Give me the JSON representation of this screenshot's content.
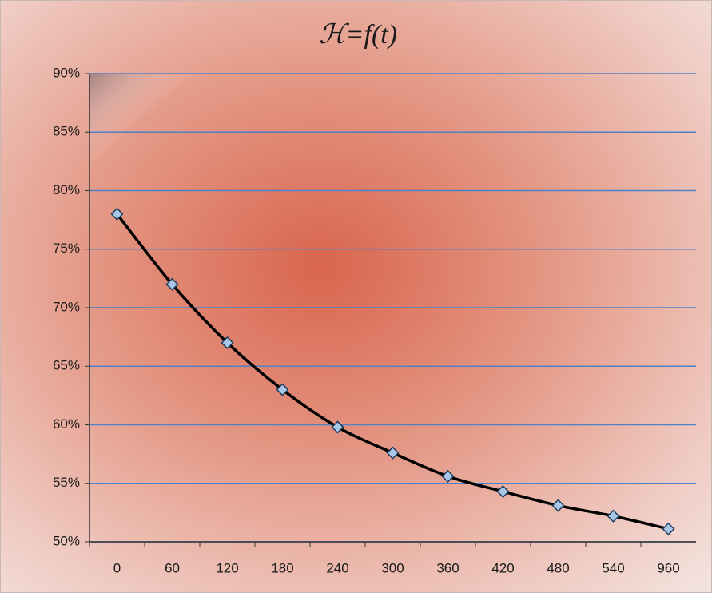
{
  "chart_data": {
    "type": "line",
    "title": "ℋ=f(t)",
    "categories": [
      "0",
      "60",
      "120",
      "180",
      "240",
      "300",
      "360",
      "420",
      "480",
      "540",
      "960"
    ],
    "series": [
      {
        "values": [
          78,
          72,
          67,
          63,
          59.8,
          57.6,
          55.6,
          54.3,
          53.1,
          52.2,
          51.1
        ],
        "color": "#000000",
        "marker_color": "#a9c8e8",
        "smooth": true
      }
    ],
    "ylim": [
      50,
      90
    ],
    "yticks": [
      {
        "value": 50,
        "label": "50%"
      },
      {
        "value": 55,
        "label": "55%"
      },
      {
        "value": 60,
        "label": "60%"
      },
      {
        "value": 65,
        "label": "65%"
      },
      {
        "value": 70,
        "label": "70%"
      },
      {
        "value": 75,
        "label": "75%"
      },
      {
        "value": 80,
        "label": "80%"
      },
      {
        "value": 85,
        "label": "85%"
      },
      {
        "value": 90,
        "label": "90%"
      }
    ],
    "grid": true,
    "grid_color": "#4f81c7"
  }
}
